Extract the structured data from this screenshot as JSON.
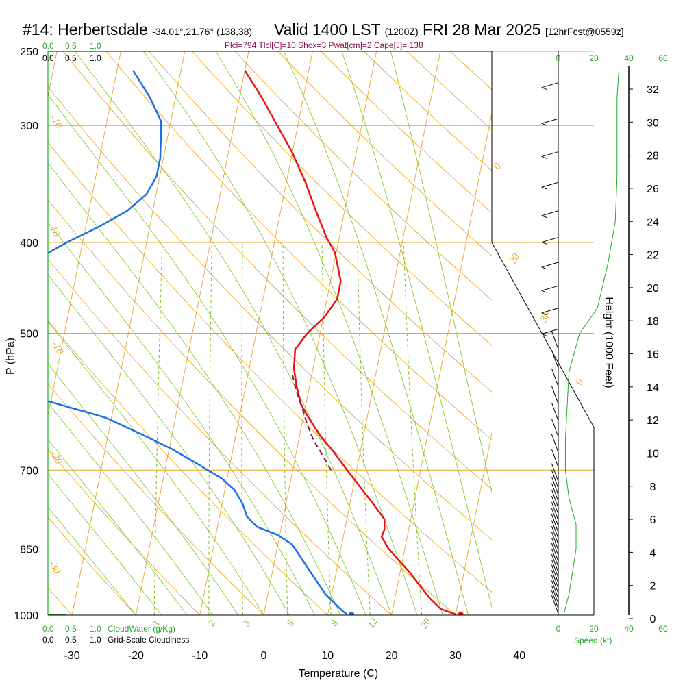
{
  "header": {
    "station": "#14: Herbertsdale",
    "coords": "-34.01°,21.76° (138,38)",
    "valid": "Valid 1400 LST",
    "utc": "(1200Z)",
    "date": "FRI 28 Mar 2025",
    "forecast": "[12hrFcst@0559z]",
    "params": "Plcl=794 Tlcl[C]=10 Shox=3 Pwat[cm]=2 Cape[J]= 138"
  },
  "scales": {
    "top_green": [
      "0.0",
      "0.5",
      "1.0"
    ],
    "top_black": [
      "0.0",
      "0.5",
      "1.0"
    ],
    "bottom_green": [
      "0.0",
      "0.5",
      "1.0"
    ],
    "bottom_green_label": "CloudWater (g/Kg)",
    "bottom_black": [
      "0.0",
      "0.5",
      "1.0"
    ],
    "bottom_black_label": "Grid-Scale Cloudiness",
    "speed_top": [
      "0",
      "20",
      "40",
      "60"
    ],
    "speed_bottom": [
      "0",
      "20",
      "40",
      "60"
    ],
    "speed_label": "Speed (kt)"
  },
  "colors": {
    "temperature": "#ee1111",
    "dewpoint": "#1a6fe8",
    "parcel": "#8b1050",
    "isotherm": "#e8a72a",
    "mixing_ratio": "#7fc21c",
    "cloud_water": "#22aa22"
  },
  "chart_data": {
    "type": "line",
    "skew": "skew-T log-p",
    "xlabel": "Temperature (C)",
    "ylabel": "P (hPa)",
    "y2label": "Height (1000 Feet)",
    "xlim": [
      -34,
      46
    ],
    "ylim": [
      1000,
      250
    ],
    "x_ticks": [
      -30,
      -20,
      -10,
      0,
      10,
      20,
      30,
      40
    ],
    "y_ticks": [
      250,
      300,
      400,
      500,
      700,
      850,
      1000
    ],
    "height_ticks": [
      0,
      2,
      4,
      6,
      8,
      10,
      12,
      14,
      16,
      18,
      20,
      22,
      24,
      26,
      28,
      30,
      32
    ],
    "isotherm_labels": [
      "-10",
      "0",
      "10",
      "20",
      "30",
      "0",
      "-10",
      "-20",
      "-30"
    ],
    "mixing_ratio_labels": [
      "1",
      "2",
      "3",
      "5",
      "8",
      "12",
      "20"
    ],
    "series": [
      {
        "name": "temperature",
        "points": [
          [
            30.0,
            998
          ],
          [
            27.5,
            985
          ],
          [
            25.5,
            960
          ],
          [
            23.5,
            930
          ],
          [
            21.5,
            900
          ],
          [
            19.5,
            875
          ],
          [
            17.5,
            850
          ],
          [
            16.0,
            825
          ],
          [
            16.2,
            810
          ],
          [
            15.9,
            790
          ],
          [
            13.6,
            760
          ],
          [
            11.1,
            730
          ],
          [
            8.5,
            700
          ],
          [
            5.9,
            670
          ],
          [
            3.4,
            645
          ],
          [
            0.8,
            615
          ],
          [
            -0.8,
            595
          ],
          [
            -2.0,
            570
          ],
          [
            -3.0,
            545
          ],
          [
            -3.4,
            520
          ],
          [
            -2.0,
            500
          ],
          [
            0.2,
            480
          ],
          [
            1.6,
            460
          ],
          [
            1.6,
            440
          ],
          [
            -0.2,
            410
          ],
          [
            -2.0,
            395
          ],
          [
            -4.5,
            370
          ],
          [
            -7.0,
            345
          ],
          [
            -10.1,
            320
          ],
          [
            -13.2,
            300
          ],
          [
            -16.5,
            280
          ],
          [
            -20.0,
            262
          ]
        ]
      },
      {
        "name": "dewpoint",
        "points": [
          [
            13.0,
            998
          ],
          [
            12.2,
            990
          ],
          [
            9.0,
            950
          ],
          [
            6.0,
            900
          ],
          [
            3.5,
            860
          ],
          [
            2.2,
            840
          ],
          [
            -0.5,
            820
          ],
          [
            -3.8,
            805
          ],
          [
            -5.7,
            785
          ],
          [
            -6.8,
            760
          ],
          [
            -8.5,
            735
          ],
          [
            -10.8,
            715
          ],
          [
            -15.0,
            690
          ],
          [
            -19.5,
            665
          ],
          [
            -25.0,
            640
          ],
          [
            -31.0,
            615
          ],
          [
            -40.8,
            590
          ],
          [
            -44.0,
            565
          ],
          [
            -51.5,
            535
          ],
          [
            -57.5,
            505
          ],
          [
            -58.5,
            470
          ],
          [
            -52.0,
            440
          ],
          [
            -42.5,
            400
          ],
          [
            -38.0,
            385
          ],
          [
            -34.0,
            370
          ],
          [
            -31.5,
            355
          ],
          [
            -30.5,
            340
          ],
          [
            -30.5,
            325
          ],
          [
            -31.0,
            310
          ],
          [
            -31.5,
            297
          ],
          [
            -34.0,
            280
          ],
          [
            -37.5,
            262
          ]
        ]
      },
      {
        "name": "parcel",
        "points": [
          [
            6.0,
            700
          ],
          [
            4.2,
            675
          ],
          [
            2.3,
            650
          ],
          [
            0.8,
            625
          ],
          [
            -0.5,
            600
          ],
          [
            -2.0,
            575
          ],
          [
            -3.2,
            550
          ]
        ]
      },
      {
        "name": "surface",
        "points": [
          [
            30.8,
            998
          ],
          [
            13.7,
            998
          ]
        ]
      }
    ],
    "cloud_water": [
      [
        0.0,
        1000
      ],
      [
        0.05,
        998
      ],
      [
        0.15,
        998
      ],
      [
        0.35,
        998
      ]
    ],
    "cloudiness": [],
    "wind_speed_kt": [
      [
        3,
        1000
      ],
      [
        6,
        950
      ],
      [
        8,
        900
      ],
      [
        10,
        850
      ],
      [
        10,
        800
      ],
      [
        6,
        750
      ],
      [
        4,
        700
      ],
      [
        4,
        650
      ],
      [
        6,
        550
      ],
      [
        12,
        500
      ],
      [
        22,
        470
      ],
      [
        28,
        420
      ],
      [
        32,
        380
      ],
      [
        33,
        340
      ],
      [
        33,
        300
      ],
      [
        33,
        280
      ],
      [
        34,
        262
      ]
    ]
  }
}
